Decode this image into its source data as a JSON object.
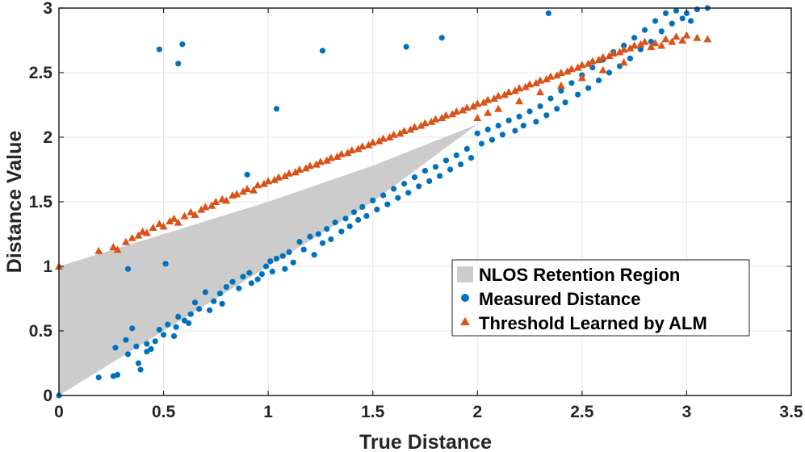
{
  "chart_data": {
    "type": "scatter",
    "xlabel": "True Distance",
    "ylabel": "Distance Value",
    "xlim": [
      0,
      3.5
    ],
    "ylim": [
      0,
      3
    ],
    "xticks": [
      0,
      0.5,
      1,
      1.5,
      2,
      2.5,
      3,
      3.5
    ],
    "yticks": [
      0,
      0.5,
      1,
      1.5,
      2,
      2.5,
      3
    ],
    "xtick_labels": [
      "0",
      "0.5",
      "1",
      "1.5",
      "2",
      "2.5",
      "3",
      "3.5"
    ],
    "ytick_labels": [
      "0",
      "0.5",
      "1",
      "1.5",
      "2",
      "2.5",
      "3"
    ],
    "grid": true,
    "legend_position": "bottom-right",
    "colors": {
      "region": "#cccccc",
      "measured": "#0072bd",
      "threshold": "#d95319",
      "grid": "#e6e6e6",
      "axis": "#262626"
    },
    "region": {
      "name": "NLOS Retention Region",
      "upper": [
        [
          0,
          1.0
        ],
        [
          0.5,
          1.25
        ],
        [
          1.0,
          1.5
        ],
        [
          1.5,
          1.78
        ],
        [
          2.0,
          2.1
        ]
      ],
      "lower": [
        [
          0,
          0
        ],
        [
          0.5,
          0.5
        ],
        [
          1.0,
          1.0
        ],
        [
          1.5,
          1.5
        ],
        [
          2.0,
          2.1
        ]
      ]
    },
    "series": [
      {
        "name": "Measured Distance",
        "marker": "circle",
        "points": [
          [
            0.0,
            0.0
          ],
          [
            0.19,
            0.14
          ],
          [
            0.26,
            0.15
          ],
          [
            0.27,
            0.37
          ],
          [
            0.28,
            0.16
          ],
          [
            0.32,
            0.43
          ],
          [
            0.33,
            0.32
          ],
          [
            0.35,
            0.52
          ],
          [
            0.37,
            0.38
          ],
          [
            0.38,
            0.25
          ],
          [
            0.39,
            0.2
          ],
          [
            0.42,
            0.4
          ],
          [
            0.42,
            0.34
          ],
          [
            0.44,
            0.36
          ],
          [
            0.46,
            0.42
          ],
          [
            0.48,
            0.51
          ],
          [
            0.5,
            0.47
          ],
          [
            0.52,
            0.55
          ],
          [
            0.55,
            0.46
          ],
          [
            0.56,
            0.53
          ],
          [
            0.57,
            0.61
          ],
          [
            0.6,
            0.58
          ],
          [
            0.62,
            0.56
          ],
          [
            0.63,
            0.63
          ],
          [
            0.65,
            0.72
          ],
          [
            0.67,
            0.67
          ],
          [
            0.7,
            0.8
          ],
          [
            0.72,
            0.66
          ],
          [
            0.74,
            0.73
          ],
          [
            0.77,
            0.79
          ],
          [
            0.78,
            0.71
          ],
          [
            0.8,
            0.84
          ],
          [
            0.83,
            0.88
          ],
          [
            0.86,
            0.83
          ],
          [
            0.88,
            0.92
          ],
          [
            0.91,
            0.95
          ],
          [
            0.92,
            0.87
          ],
          [
            0.95,
            0.9
          ],
          [
            0.97,
            0.94
          ],
          [
            0.99,
            1.0
          ],
          [
            1.01,
            1.04
          ],
          [
            1.02,
            0.96
          ],
          [
            1.04,
            1.06
          ],
          [
            1.07,
            1.08
          ],
          [
            1.08,
            0.98
          ],
          [
            1.1,
            1.11
          ],
          [
            1.12,
            1.03
          ],
          [
            1.15,
            1.19
          ],
          [
            1.17,
            1.13
          ],
          [
            1.2,
            1.23
          ],
          [
            1.22,
            1.09
          ],
          [
            1.24,
            1.25
          ],
          [
            1.26,
            1.18
          ],
          [
            1.28,
            1.29
          ],
          [
            1.3,
            1.21
          ],
          [
            1.32,
            1.34
          ],
          [
            1.35,
            1.27
          ],
          [
            1.37,
            1.37
          ],
          [
            1.39,
            1.31
          ],
          [
            1.41,
            1.42
          ],
          [
            1.43,
            1.36
          ],
          [
            1.45,
            1.46
          ],
          [
            1.47,
            1.39
          ],
          [
            1.5,
            1.51
          ],
          [
            1.52,
            1.44
          ],
          [
            1.55,
            1.55
          ],
          [
            1.57,
            1.48
          ],
          [
            1.6,
            1.6
          ],
          [
            1.62,
            1.53
          ],
          [
            1.65,
            1.64
          ],
          [
            1.67,
            1.57
          ],
          [
            1.7,
            1.69
          ],
          [
            1.72,
            1.62
          ],
          [
            1.75,
            1.74
          ],
          [
            1.77,
            1.66
          ],
          [
            1.8,
            1.77
          ],
          [
            1.82,
            1.7
          ],
          [
            1.85,
            1.82
          ],
          [
            1.87,
            1.75
          ],
          [
            1.9,
            1.86
          ],
          [
            1.92,
            1.79
          ],
          [
            1.95,
            1.91
          ],
          [
            1.97,
            1.84
          ],
          [
            2.0,
            2.03
          ],
          [
            2.02,
            1.95
          ],
          [
            2.05,
            2.06
          ],
          [
            2.07,
            1.98
          ],
          [
            2.1,
            2.09
          ],
          [
            2.12,
            2.02
          ],
          [
            2.15,
            2.13
          ],
          [
            2.18,
            2.05
          ],
          [
            2.2,
            2.16
          ],
          [
            2.22,
            2.09
          ],
          [
            2.25,
            2.2
          ],
          [
            2.28,
            2.12
          ],
          [
            2.3,
            2.24
          ],
          [
            2.33,
            2.17
          ],
          [
            2.35,
            2.3
          ],
          [
            2.38,
            2.22
          ],
          [
            2.4,
            2.36
          ],
          [
            2.42,
            2.27
          ],
          [
            2.45,
            2.42
          ],
          [
            2.48,
            2.33
          ],
          [
            2.5,
            2.48
          ],
          [
            2.53,
            2.38
          ],
          [
            2.55,
            2.54
          ],
          [
            2.58,
            2.44
          ],
          [
            2.6,
            2.6
          ],
          [
            2.63,
            2.5
          ],
          [
            2.65,
            2.66
          ],
          [
            2.68,
            2.55
          ],
          [
            2.7,
            2.71
          ],
          [
            2.73,
            2.61
          ],
          [
            2.75,
            2.77
          ],
          [
            2.78,
            2.68
          ],
          [
            2.8,
            2.83
          ],
          [
            2.83,
            2.74
          ],
          [
            2.85,
            2.9
          ],
          [
            2.88,
            2.82
          ],
          [
            2.9,
            2.96
          ],
          [
            2.93,
            2.88
          ],
          [
            2.95,
            2.98
          ],
          [
            2.98,
            2.92
          ],
          [
            3.0,
            2.96
          ],
          [
            3.02,
            2.9
          ],
          [
            3.05,
            2.99
          ],
          [
            3.1,
            3.0
          ],
          [
            0.48,
            2.68
          ],
          [
            0.57,
            2.57
          ],
          [
            0.59,
            2.72
          ],
          [
            0.9,
            1.71
          ],
          [
            1.04,
            2.22
          ],
          [
            1.26,
            2.67
          ],
          [
            1.66,
            2.7
          ],
          [
            1.83,
            2.77
          ],
          [
            2.34,
            2.96
          ],
          [
            0.33,
            0.98
          ],
          [
            0.51,
            1.02
          ]
        ]
      },
      {
        "name": "Threshold Learned by ALM",
        "marker": "triangle",
        "points": [
          [
            0.0,
            1.0
          ],
          [
            0.19,
            1.12
          ],
          [
            0.26,
            1.15
          ],
          [
            0.28,
            1.13
          ],
          [
            0.32,
            1.19
          ],
          [
            0.35,
            1.22
          ],
          [
            0.38,
            1.24
          ],
          [
            0.4,
            1.27
          ],
          [
            0.42,
            1.26
          ],
          [
            0.45,
            1.3
          ],
          [
            0.48,
            1.33
          ],
          [
            0.5,
            1.31
          ],
          [
            0.53,
            1.35
          ],
          [
            0.55,
            1.37
          ],
          [
            0.57,
            1.34
          ],
          [
            0.6,
            1.39
          ],
          [
            0.63,
            1.42
          ],
          [
            0.65,
            1.4
          ],
          [
            0.68,
            1.44
          ],
          [
            0.7,
            1.46
          ],
          [
            0.73,
            1.47
          ],
          [
            0.75,
            1.5
          ],
          [
            0.78,
            1.52
          ],
          [
            0.8,
            1.51
          ],
          [
            0.83,
            1.55
          ],
          [
            0.85,
            1.56
          ],
          [
            0.88,
            1.58
          ],
          [
            0.9,
            1.6
          ],
          [
            0.93,
            1.59
          ],
          [
            0.95,
            1.63
          ],
          [
            0.98,
            1.64
          ],
          [
            1.0,
            1.66
          ],
          [
            1.03,
            1.67
          ],
          [
            1.05,
            1.69
          ],
          [
            1.08,
            1.7
          ],
          [
            1.1,
            1.72
          ],
          [
            1.13,
            1.73
          ],
          [
            1.15,
            1.75
          ],
          [
            1.18,
            1.76
          ],
          [
            1.2,
            1.78
          ],
          [
            1.23,
            1.79
          ],
          [
            1.25,
            1.81
          ],
          [
            1.28,
            1.82
          ],
          [
            1.3,
            1.84
          ],
          [
            1.33,
            1.85
          ],
          [
            1.35,
            1.87
          ],
          [
            1.38,
            1.88
          ],
          [
            1.4,
            1.9
          ],
          [
            1.43,
            1.91
          ],
          [
            1.45,
            1.93
          ],
          [
            1.48,
            1.94
          ],
          [
            1.5,
            1.96
          ],
          [
            1.53,
            1.97
          ],
          [
            1.55,
            1.99
          ],
          [
            1.58,
            2.0
          ],
          [
            1.6,
            2.02
          ],
          [
            1.63,
            2.03
          ],
          [
            1.65,
            2.05
          ],
          [
            1.68,
            2.06
          ],
          [
            1.7,
            2.08
          ],
          [
            1.73,
            2.09
          ],
          [
            1.75,
            2.11
          ],
          [
            1.78,
            2.12
          ],
          [
            1.8,
            2.14
          ],
          [
            1.83,
            2.15
          ],
          [
            1.85,
            2.17
          ],
          [
            1.88,
            2.18
          ],
          [
            1.9,
            2.2
          ],
          [
            1.93,
            2.21
          ],
          [
            1.95,
            2.23
          ],
          [
            1.98,
            2.24
          ],
          [
            2.0,
            2.26
          ],
          [
            2.03,
            2.27
          ],
          [
            2.05,
            2.29
          ],
          [
            2.08,
            2.3
          ],
          [
            2.1,
            2.32
          ],
          [
            2.13,
            2.33
          ],
          [
            2.15,
            2.35
          ],
          [
            2.18,
            2.36
          ],
          [
            2.2,
            2.38
          ],
          [
            2.23,
            2.39
          ],
          [
            2.25,
            2.41
          ],
          [
            2.28,
            2.42
          ],
          [
            2.3,
            2.44
          ],
          [
            2.33,
            2.45
          ],
          [
            2.35,
            2.47
          ],
          [
            2.38,
            2.48
          ],
          [
            2.4,
            2.5
          ],
          [
            2.43,
            2.51
          ],
          [
            2.45,
            2.53
          ],
          [
            2.48,
            2.54
          ],
          [
            2.5,
            2.56
          ],
          [
            2.53,
            2.57
          ],
          [
            2.55,
            2.59
          ],
          [
            2.58,
            2.6
          ],
          [
            2.6,
            2.62
          ],
          [
            2.63,
            2.63
          ],
          [
            2.65,
            2.65
          ],
          [
            2.68,
            2.66
          ],
          [
            2.7,
            2.68
          ],
          [
            2.73,
            2.69
          ],
          [
            2.75,
            2.71
          ],
          [
            2.78,
            2.72
          ],
          [
            2.8,
            2.74
          ],
          [
            2.83,
            2.7
          ],
          [
            2.85,
            2.73
          ],
          [
            2.88,
            2.71
          ],
          [
            2.9,
            2.76
          ],
          [
            2.93,
            2.74
          ],
          [
            2.95,
            2.78
          ],
          [
            2.98,
            2.75
          ],
          [
            3.0,
            2.79
          ],
          [
            3.05,
            2.77
          ],
          [
            3.1,
            2.76
          ],
          [
            2.0,
            2.15
          ],
          [
            2.05,
            2.19
          ],
          [
            2.1,
            2.22
          ],
          [
            2.2,
            2.28
          ],
          [
            2.3,
            2.35
          ],
          [
            2.4,
            2.4
          ],
          [
            2.5,
            2.46
          ],
          [
            2.6,
            2.52
          ],
          [
            2.7,
            2.58
          ]
        ]
      }
    ]
  }
}
